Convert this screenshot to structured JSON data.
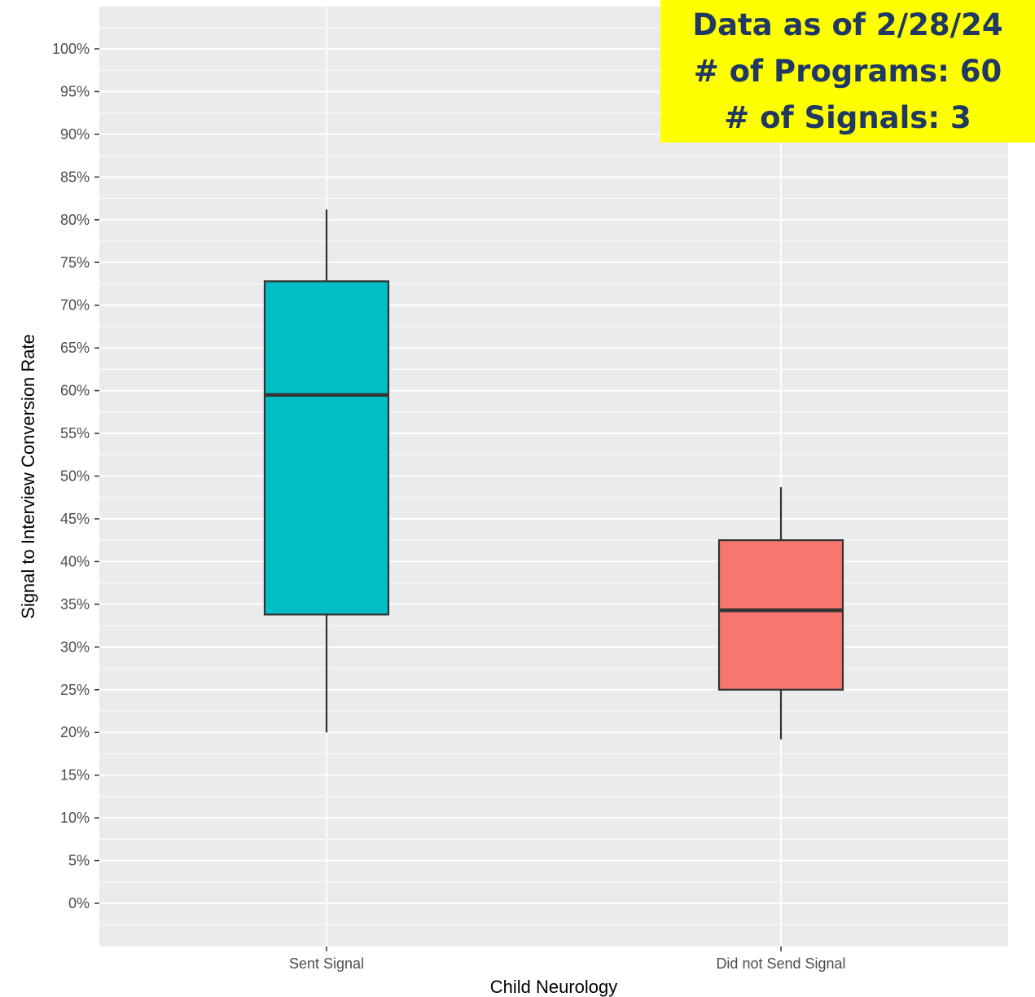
{
  "chart_data": {
    "type": "boxplot",
    "title": "",
    "xlabel": "Child Neurology",
    "ylabel": "Signal to Interview Conversion Rate",
    "ylim": [
      -0.05,
      1.05
    ],
    "yticks": [
      0,
      0.05,
      0.1,
      0.15,
      0.2,
      0.25,
      0.3,
      0.35,
      0.4,
      0.45,
      0.5,
      0.55,
      0.6,
      0.65,
      0.7,
      0.75,
      0.8,
      0.85,
      0.9,
      0.95,
      1.0
    ],
    "ytick_labels": [
      "0%",
      "5%",
      "10%",
      "15%",
      "20%",
      "25%",
      "30%",
      "35%",
      "40%",
      "45%",
      "50%",
      "55%",
      "60%",
      "65%",
      "70%",
      "75%",
      "80%",
      "85%",
      "90%",
      "95%",
      "100%"
    ],
    "categories": [
      "Sent Signal",
      "Did not Send Signal"
    ],
    "boxes": [
      {
        "category": "Sent Signal",
        "whisker_low": 0.2,
        "q1": 0.338,
        "median": 0.595,
        "q3": 0.728,
        "whisker_high": 0.812,
        "color": "#00bfc4"
      },
      {
        "category": "Did not Send Signal",
        "whisker_low": 0.192,
        "q1": 0.25,
        "median": 0.343,
        "q3": 0.425,
        "whisker_high": 0.487,
        "color": "#f8766d"
      }
    ],
    "grid": true,
    "panel_color": "#ebebeb",
    "gridline_color": "#ffffff"
  },
  "annotation": {
    "lines": [
      "Data as of 2/28/24",
      "# of Programs: 60",
      "# of Signals: 3"
    ],
    "background": "#ffff00",
    "text_color": "#1f3864"
  }
}
